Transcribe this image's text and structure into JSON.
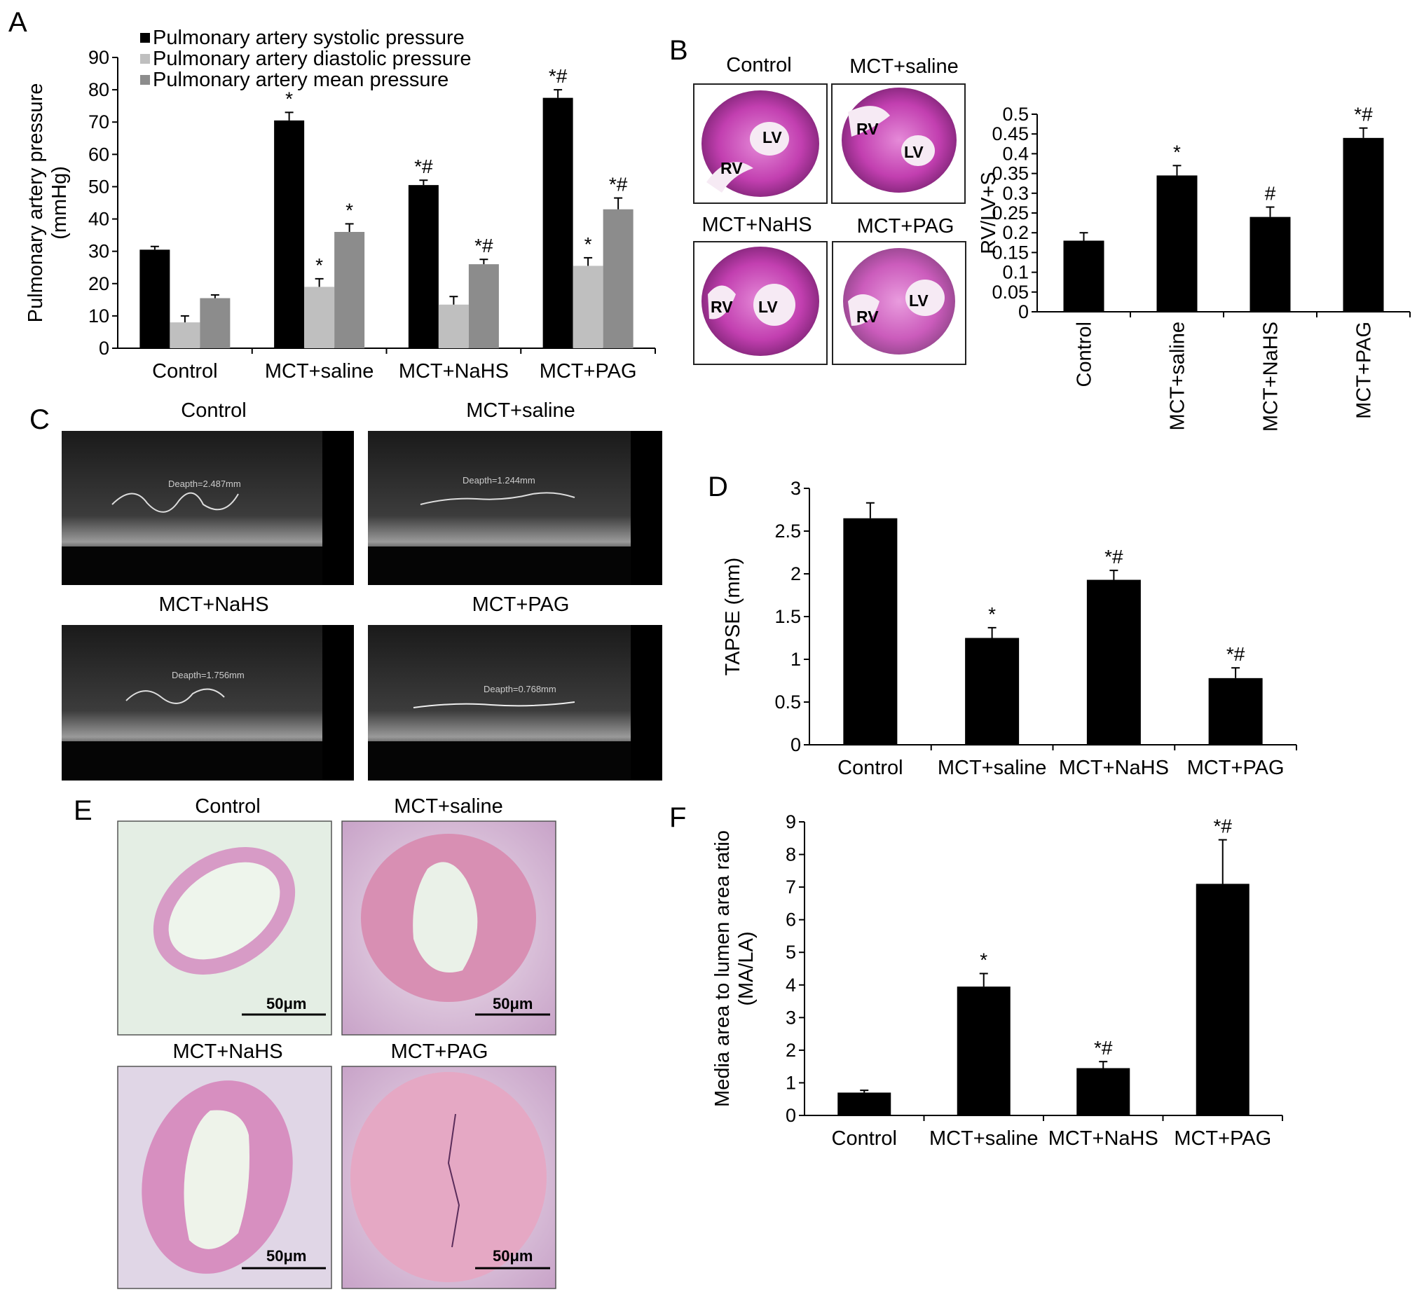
{
  "colors": {
    "bar": "#000000",
    "light_bar": "#bfbfbf",
    "mid_bar": "#8c8c8c",
    "he_stain": "#c23fb0",
    "echo_bg": "#0a0a0a"
  },
  "panels": {
    "a": "A",
    "b": "B",
    "c": "C",
    "d": "D",
    "e": "E",
    "f": "F"
  },
  "heart_images": {
    "titles": [
      "Control",
      "MCT+saline",
      "MCT+NaHS",
      "MCT+PAG"
    ],
    "rv_label": "RV",
    "lv_label": "LV"
  },
  "echo_images": {
    "titles": [
      "Control",
      "MCT+saline",
      "MCT+NaHS",
      "MCT+PAG"
    ],
    "depth_labels": [
      "Deapth=2.487mm",
      "Deapth=1.244mm",
      "Deapth=1.756mm",
      "Deapth=0.768mm"
    ]
  },
  "histo_images": {
    "titles": [
      "Control",
      "MCT+saline",
      "MCT+NaHS",
      "MCT+PAG"
    ],
    "scale_bar": "50μm"
  },
  "chart_data": [
    {
      "panel": "A",
      "type": "bar",
      "categories": [
        "Control",
        "MCT+saline",
        "MCT+NaHS",
        "MCT+PAG"
      ],
      "series": [
        {
          "name": "Pulmonary artery systolic pressure",
          "values": [
            30.5,
            70.5,
            50.5,
            77.5
          ],
          "errors": [
            1,
            2.5,
            1.5,
            2.5
          ],
          "annotations": [
            "",
            "*",
            "*#",
            "*#"
          ]
        },
        {
          "name": "Pulmonary artery diastolic pressure",
          "values": [
            8,
            19,
            13.5,
            25.5
          ],
          "errors": [
            2,
            2.5,
            2.5,
            2.5
          ],
          "annotations": [
            "",
            "*",
            "",
            "*"
          ]
        },
        {
          "name": "Pulmonary artery mean pressure",
          "values": [
            15.5,
            36,
            26,
            43
          ],
          "errors": [
            1,
            2.5,
            1.5,
            3.5
          ],
          "annotations": [
            "",
            "*",
            "*#",
            "*#"
          ]
        }
      ],
      "ylabel": "Pulmonary artery pressure (mmHg)",
      "ylim": [
        0,
        90
      ],
      "yticks": [
        "0",
        "10",
        "20",
        "30",
        "40",
        "50",
        "60",
        "70",
        "80",
        "90"
      ],
      "legend": "top"
    },
    {
      "panel": "B",
      "type": "bar",
      "categories": [
        "Control",
        "MCT+saline",
        "MCT+NaHS",
        "MCT+PAG"
      ],
      "values": [
        0.18,
        0.345,
        0.24,
        0.44
      ],
      "errors": [
        0.02,
        0.025,
        0.025,
        0.025
      ],
      "annotations": [
        "",
        "*",
        "#",
        "*#"
      ],
      "ylabel": "RV/LV+S",
      "ylim": [
        0,
        0.5
      ],
      "yticks": [
        "0",
        "0.05",
        "0.1",
        "0.15",
        "0.2",
        "0.25",
        "0.3",
        "0.35",
        "0.4",
        "0.45",
        "0.5"
      ]
    },
    {
      "panel": "D",
      "type": "bar",
      "categories": [
        "Control",
        "MCT+saline",
        "MCT+NaHS",
        "MCT+PAG"
      ],
      "values": [
        2.65,
        1.25,
        1.93,
        0.78
      ],
      "errors": [
        0.18,
        0.12,
        0.11,
        0.12
      ],
      "annotations": [
        "",
        "*",
        "*#",
        "*#"
      ],
      "ylabel": "TAPSE (mm)",
      "ylim": [
        0,
        3
      ],
      "yticks": [
        "0",
        "0.5",
        "1",
        "1.5",
        "2",
        "2.5",
        "3"
      ]
    },
    {
      "panel": "F",
      "type": "bar",
      "categories": [
        "Control",
        "MCT+saline",
        "MCT+NaHS",
        "MCT+PAG"
      ],
      "values": [
        0.7,
        3.95,
        1.45,
        7.1
      ],
      "errors": [
        0.07,
        0.4,
        0.2,
        1.35
      ],
      "annotations": [
        "",
        "*",
        "*#",
        "*#"
      ],
      "ylabel": "Media area to lumen area ratio (MA/LA)",
      "ylim": [
        0,
        9
      ],
      "yticks": [
        "0",
        "1",
        "2",
        "3",
        "4",
        "5",
        "6",
        "7",
        "8",
        "9"
      ]
    }
  ]
}
